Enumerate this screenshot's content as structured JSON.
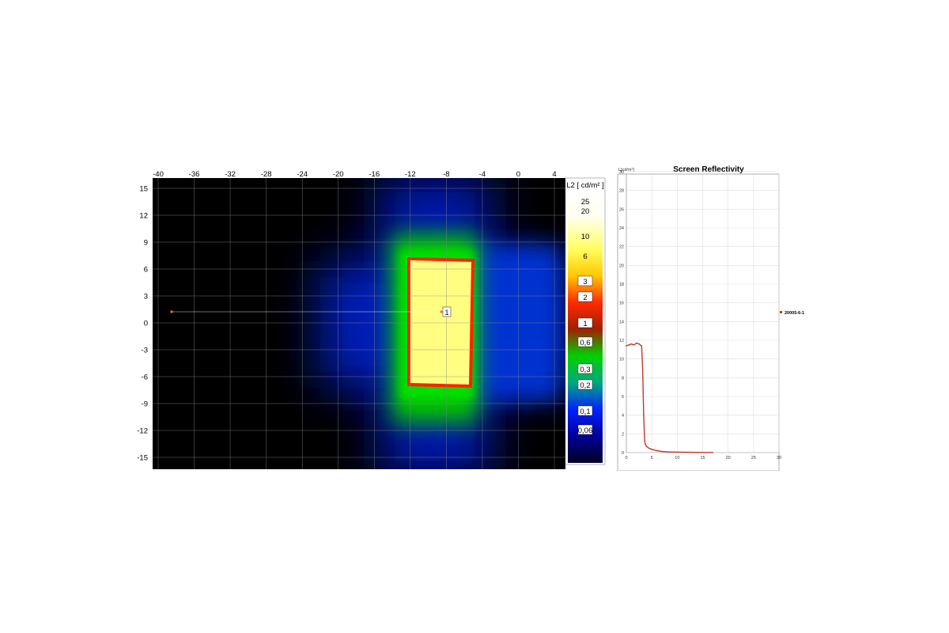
{
  "heatmap": {
    "x_ticks": [
      "-40",
      "-36",
      "-32",
      "-28",
      "-24",
      "-20",
      "-16",
      "-12",
      "-8",
      "-4",
      "0",
      "4"
    ],
    "y_ticks": [
      "15",
      "12",
      "9",
      "6",
      "3",
      "0",
      "-3",
      "-6",
      "-9",
      "-12",
      "-15"
    ],
    "marker_label": "1",
    "colorbar": {
      "title": "L2 [ cd/m² ]",
      "labels": [
        "25",
        "20",
        "10",
        "6",
        "3",
        "2",
        "1",
        "0,6",
        "0,3",
        "0,2",
        "0,1",
        "0,06"
      ]
    }
  },
  "chart_data": {
    "type": "line",
    "title": "Screen Reflectivity",
    "ylabel": "L[cd/m²]",
    "xlim": [
      0,
      30
    ],
    "ylim": [
      0,
      30
    ],
    "x_ticks": [
      "0",
      "5",
      "10",
      "15",
      "20",
      "25",
      "30"
    ],
    "y_ticks": [
      "0",
      "2",
      "4",
      "6",
      "8",
      "10",
      "12",
      "14",
      "16",
      "18",
      "20",
      "22",
      "24",
      "26",
      "28",
      "30"
    ],
    "grid": true,
    "legend_position": "right",
    "series": [
      {
        "name": "20005-6-1",
        "color": "#c0392b",
        "x": [
          0,
          0.5,
          1,
          1.5,
          2,
          2.5,
          3,
          3.2,
          3.4,
          3.6,
          3.8,
          4,
          4.5,
          5,
          6,
          7,
          8,
          10,
          12,
          15,
          17
        ],
        "y": [
          11.4,
          11.5,
          11.6,
          11.5,
          11.7,
          11.6,
          11.4,
          9.0,
          4.0,
          1.2,
          0.8,
          0.65,
          0.45,
          0.35,
          0.2,
          0.12,
          0.08,
          0.05,
          0.03,
          0.02,
          0.02
        ]
      }
    ]
  }
}
